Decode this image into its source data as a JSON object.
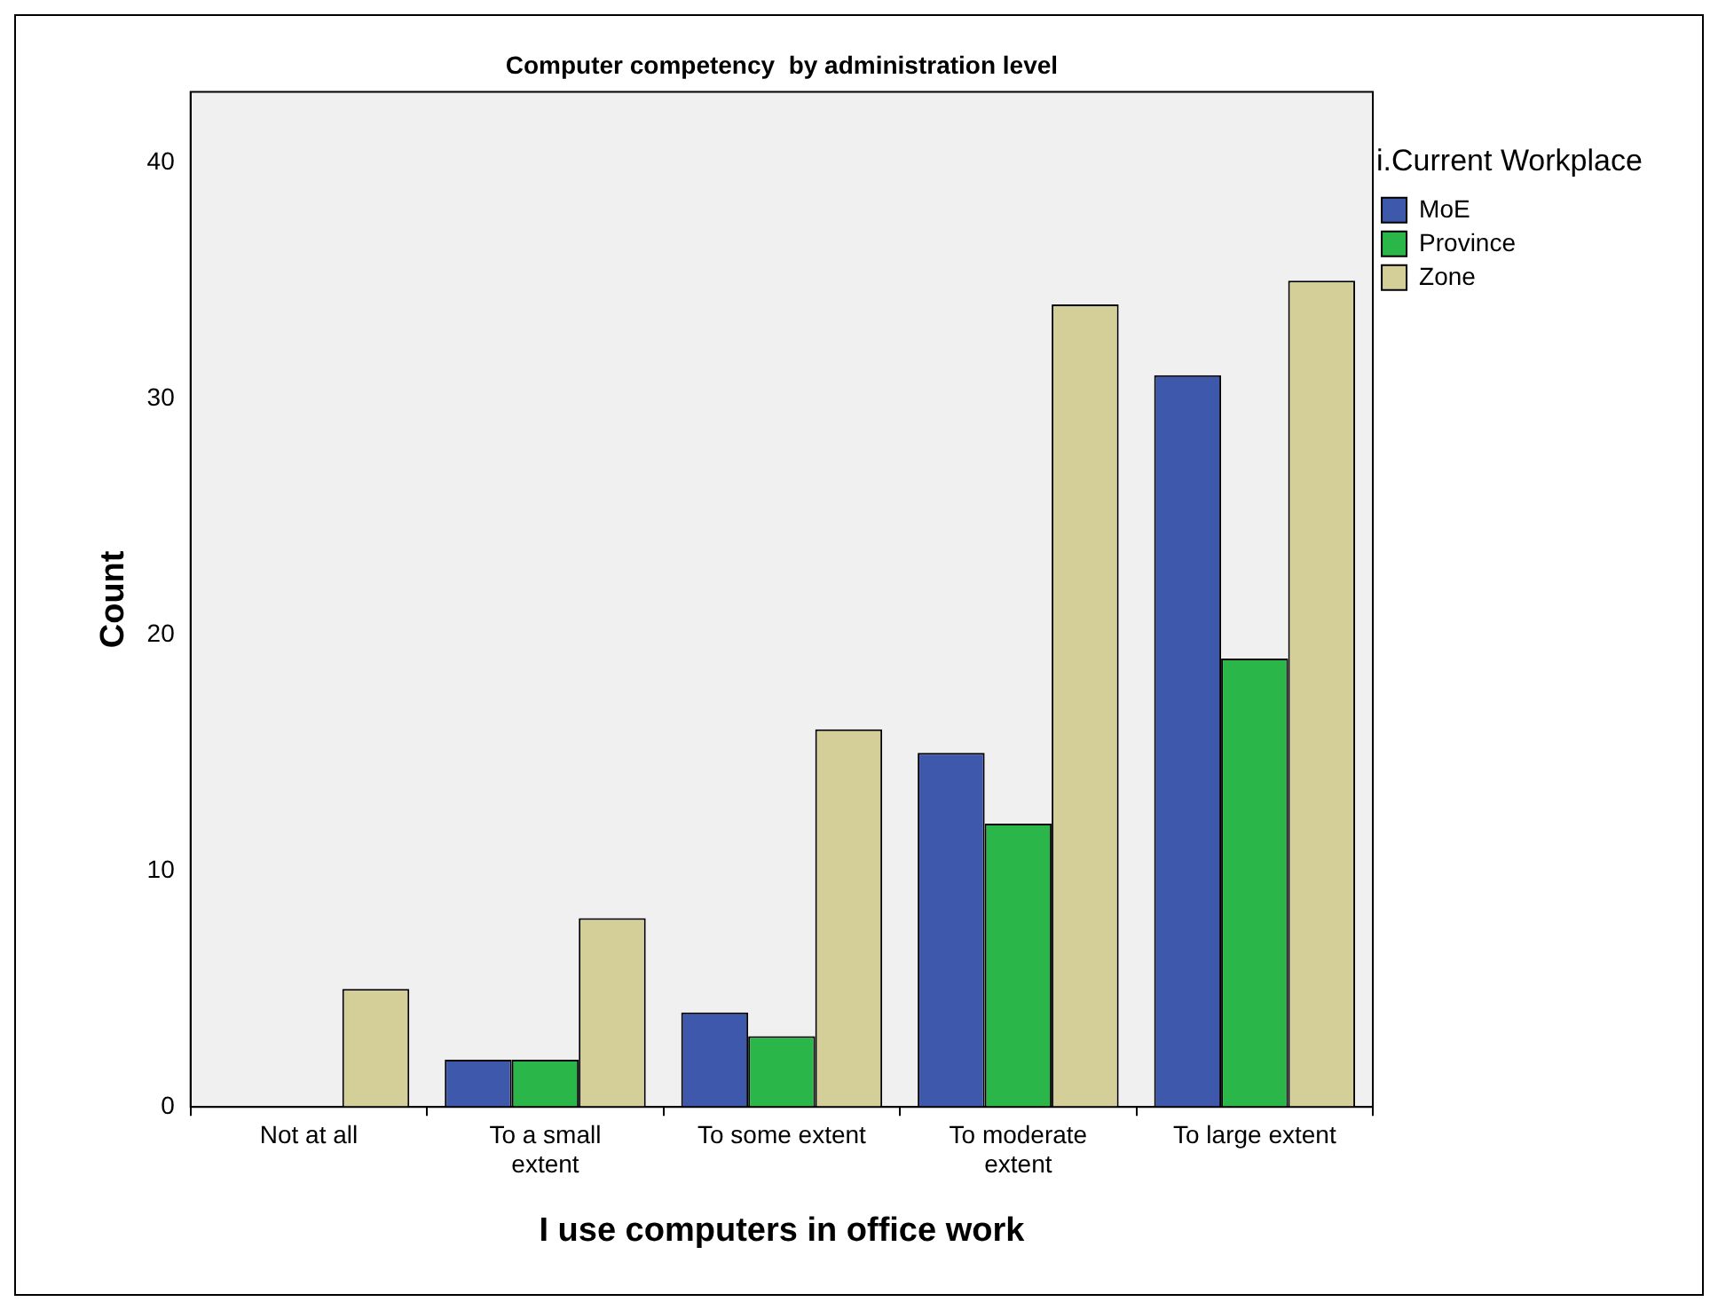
{
  "chart_data": {
    "type": "bar",
    "title": "Computer competency  by administration level",
    "xlabel": "I use computers in office work",
    "ylabel": "Count",
    "legend_title": "i.Current Workplace",
    "categories": [
      "Not at all",
      "To a small extent",
      "To some extent",
      "To moderate extent",
      "To large extent"
    ],
    "series": [
      {
        "name": "MoE",
        "color": "#3e58ac",
        "values": [
          0,
          2,
          4,
          15,
          31
        ]
      },
      {
        "name": "Province",
        "color": "#2bb64a",
        "values": [
          0,
          2,
          3,
          12,
          19
        ]
      },
      {
        "name": "Zone",
        "color": "#d4cf98",
        "values": [
          5,
          8,
          16,
          34,
          35
        ]
      }
    ],
    "ylim": [
      0,
      43
    ],
    "yticks": [
      0,
      10,
      20,
      30,
      40
    ],
    "grid": false,
    "legend": "top right"
  }
}
